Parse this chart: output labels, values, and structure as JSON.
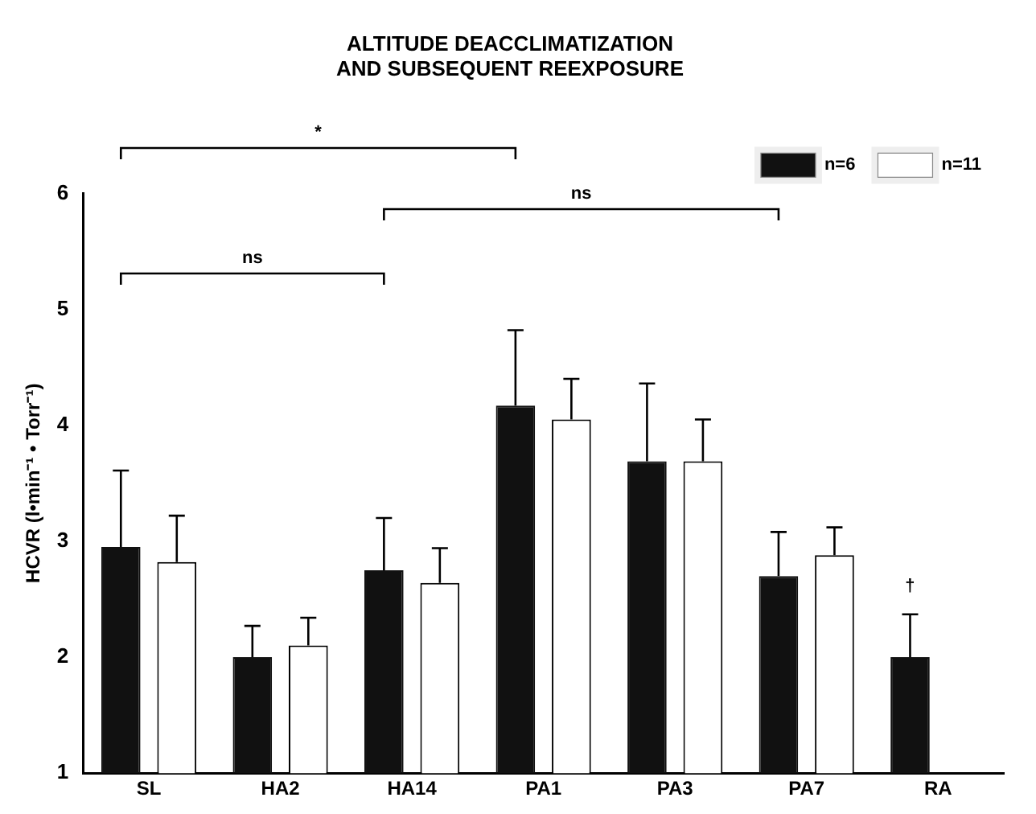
{
  "chart_data": {
    "type": "bar",
    "title": [
      "ALTITUDE DEACCLIMATIZATION",
      "AND SUBSEQUENT REEXPOSURE"
    ],
    "ylabel": "HCVR (l•min⁻¹ • Torr⁻¹)",
    "categories": [
      "SL",
      "HA2",
      "HA14",
      "PA1",
      "PA3",
      "PA7",
      "RA"
    ],
    "series": [
      {
        "name": "n=6",
        "color": "#111111",
        "values": [
          2.95,
          2.0,
          2.75,
          4.17,
          3.69,
          2.7,
          2.0
        ],
        "errors": [
          [
            2.95,
            3.61
          ],
          [
            2.0,
            2.27
          ],
          [
            2.75,
            3.2
          ],
          [
            4.17,
            4.82
          ],
          [
            3.69,
            4.36
          ],
          [
            2.7,
            3.08
          ],
          [
            2.0,
            2.37
          ]
        ]
      },
      {
        "name": "n=11",
        "color": "#ffffff",
        "values": [
          2.82,
          2.1,
          2.64,
          4.05,
          3.69,
          2.88,
          null
        ],
        "errors": [
          [
            2.82,
            3.22
          ],
          [
            2.1,
            2.34
          ],
          [
            2.64,
            2.94
          ],
          [
            4.05,
            4.4
          ],
          [
            3.69,
            4.05
          ],
          [
            2.88,
            3.12
          ],
          null
        ]
      }
    ],
    "ylim": [
      1,
      6
    ],
    "yticks": [
      1,
      2,
      3,
      4,
      5,
      6
    ],
    "grid": false,
    "legend": "top right",
    "annotations": [
      "*",
      "ns",
      "ns",
      "†"
    ]
  }
}
